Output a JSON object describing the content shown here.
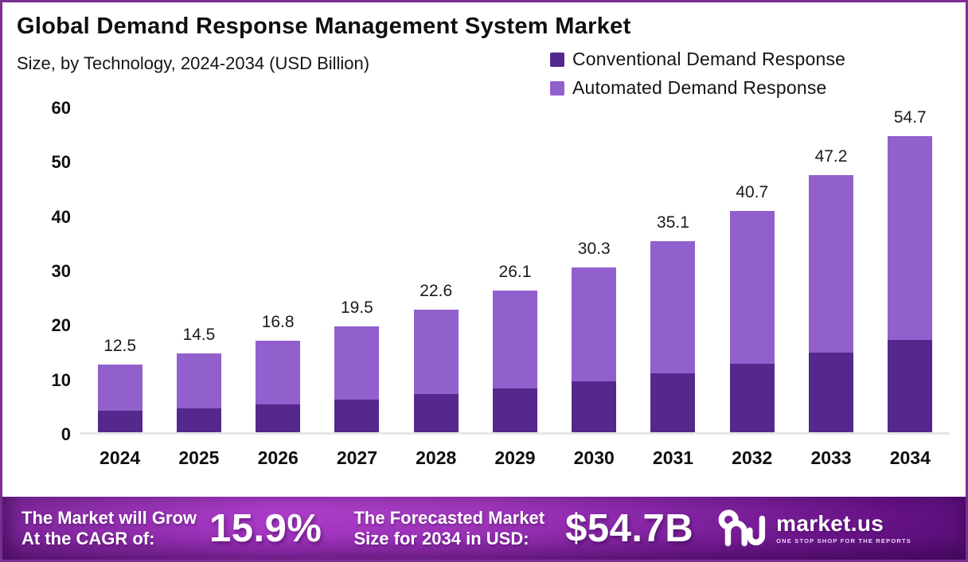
{
  "colors": {
    "frame_border": "#7b2e91",
    "conventional": "#54288c",
    "automated": "#9160cc",
    "axis_line": "#e7e7e8"
  },
  "header": {
    "title": "Global Demand Response Management System Market",
    "subtitle": "Size, by Technology, 2024-2034 (USD Billion)"
  },
  "legend": {
    "items": [
      {
        "label": "Conventional Demand Response",
        "color": "#54288c"
      },
      {
        "label": "Automated Demand Response",
        "color": "#9160cc"
      }
    ]
  },
  "chart_data": {
    "type": "bar",
    "stacked": true,
    "title": "Global Demand Response Management System Market",
    "subtitle": "Size, by Technology, 2024-2034 (USD Billion)",
    "unit": "USD Billion",
    "categories": [
      "2024",
      "2025",
      "2026",
      "2027",
      "2028",
      "2029",
      "2030",
      "2031",
      "2032",
      "2033",
      "2034"
    ],
    "series": [
      {
        "name": "Conventional Demand Response",
        "color": "#54288c",
        "values": [
          3.9,
          4.4,
          5.1,
          6.0,
          7.0,
          8.1,
          9.4,
          10.9,
          12.6,
          14.6,
          17.0
        ]
      },
      {
        "name": "Automated Demand Response",
        "color": "#9160cc",
        "values": [
          8.6,
          10.1,
          11.7,
          13.5,
          15.6,
          18.0,
          20.9,
          24.2,
          28.1,
          32.6,
          37.7
        ]
      }
    ],
    "totals": [
      12.5,
      14.5,
      16.8,
      19.5,
      22.6,
      26.1,
      30.3,
      35.1,
      40.7,
      47.2,
      54.7
    ],
    "total_labels": [
      "12.5",
      "14.5",
      "16.8",
      "19.5",
      "22.6",
      "26.1",
      "30.3",
      "35.1",
      "40.7",
      "47.2",
      "54.7"
    ],
    "y_ticks": [
      60,
      50,
      40,
      30,
      20,
      10,
      0
    ],
    "ylim": [
      0,
      60
    ],
    "grid": false,
    "legend_position": "top-right"
  },
  "footer": {
    "cagr": {
      "line1": "The Market will Grow",
      "line2": "At the CAGR of:",
      "value": "15.9%"
    },
    "forecast": {
      "line1": "The Forecasted Market",
      "line2": "Size for 2034 in USD:",
      "value": "$54.7B"
    },
    "brand": {
      "name": "market.us",
      "tagline": "ONE STOP SHOP FOR THE REPORTS"
    }
  }
}
